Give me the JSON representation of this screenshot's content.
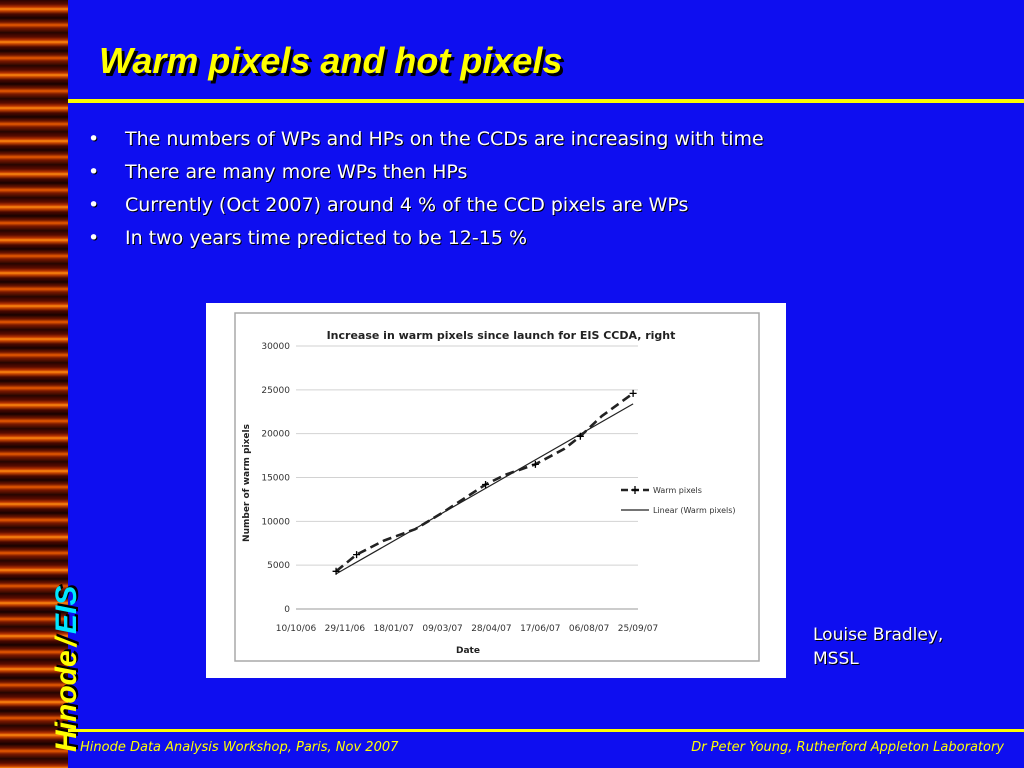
{
  "slide": {
    "title": "Warm pixels and hot pixels",
    "bullets": [
      "The numbers of WPs and HPs on the CCDs are increasing with time",
      "There are many more WPs then HPs",
      "Currently (Oct 2007) around 4 % of the CCD pixels are WPs",
      "In two years time predicted to be 12-15 %"
    ],
    "credit_line1": "Louise Bradley,",
    "credit_line2": "MSSL",
    "side_brand_hinode": "Hinode",
    "side_brand_slash": "/",
    "side_brand_eis": "EIS",
    "footer_left": "Hinode Data Analysis Workshop, Paris, Nov 2007",
    "footer_right": "Dr Peter Young, Rutherford Appleton Laboratory"
  },
  "colors": {
    "background": "#0e0ef0",
    "title": "#ffff00",
    "accent_eis": "#00e5ff"
  },
  "chart_data": {
    "type": "line",
    "title": "Increase in warm pixels since launch for EIS CCDA, right",
    "xlabel": "Date",
    "ylabel": "Number of warm pixels",
    "x_ticks": [
      "10/10/06",
      "29/11/06",
      "18/01/07",
      "09/03/07",
      "28/04/07",
      "17/06/07",
      "06/08/07",
      "25/09/07"
    ],
    "x_range": [
      "10/10/06",
      "25/09/07"
    ],
    "ylim": [
      0,
      30000
    ],
    "y_ticks": [
      0,
      5000,
      10000,
      15000,
      20000,
      25000,
      30000
    ],
    "grid": "horizontal",
    "legend_position": "right",
    "series": [
      {
        "name": "Warm pixels",
        "style": "dashed-with-markers",
        "points": [
          {
            "x": "20/11/06",
            "y": 4300
          },
          {
            "x": "11/12/06",
            "y": 6200
          },
          {
            "x": "08/01/07",
            "y": 7800
          },
          {
            "x": "09/02/07",
            "y": 9100
          },
          {
            "x": "09/03/07",
            "y": 11000
          },
          {
            "x": "22/04/07",
            "y": 14200
          },
          {
            "x": "12/05/07",
            "y": 15300
          },
          {
            "x": "12/06/07",
            "y": 16500
          },
          {
            "x": "12/07/07",
            "y": 18300
          },
          {
            "x": "28/07/07",
            "y": 19700
          },
          {
            "x": "19/08/07",
            "y": 22000
          },
          {
            "x": "20/09/07",
            "y": 24600
          }
        ],
        "marker_indices": [
          0,
          1,
          5,
          7,
          9,
          11
        ]
      },
      {
        "name": "Linear (Warm pixels)",
        "style": "solid",
        "points": [
          {
            "x": "20/11/06",
            "y": 4000
          },
          {
            "x": "20/09/07",
            "y": 23400
          }
        ]
      }
    ]
  }
}
